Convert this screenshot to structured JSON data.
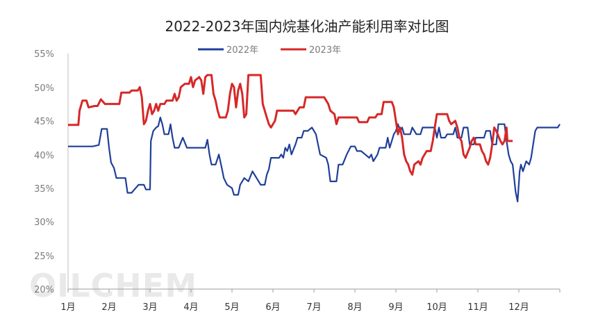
{
  "chart_data": {
    "type": "line",
    "title": "2022-2023年国内烷基化油产能利用率对比图",
    "watermark": "OILCHEM",
    "y_ticks": [
      "55%",
      "50%",
      "45%",
      "40%",
      "35%",
      "30%",
      "25%",
      "20%"
    ],
    "ylim": [
      20,
      55
    ],
    "xlim": [
      1,
      13
    ],
    "categories": [
      "1月",
      "2月",
      "3月",
      "4月",
      "5月",
      "6月",
      "7月",
      "8月",
      "9月",
      "10月",
      "11月",
      "12月"
    ],
    "grid": false,
    "legend_position": "top",
    "series": [
      {
        "name": "2022年",
        "color": "#1f3f99",
        "points": [
          [
            1.0,
            41.2
          ],
          [
            1.6,
            41.2
          ],
          [
            1.75,
            41.4
          ],
          [
            1.82,
            43.8
          ],
          [
            1.95,
            43.8
          ],
          [
            2.0,
            41.0
          ],
          [
            2.05,
            38.8
          ],
          [
            2.12,
            38.0
          ],
          [
            2.18,
            36.5
          ],
          [
            2.4,
            36.5
          ],
          [
            2.45,
            34.3
          ],
          [
            2.55,
            34.3
          ],
          [
            2.65,
            35.0
          ],
          [
            2.72,
            35.5
          ],
          [
            2.85,
            35.5
          ],
          [
            2.9,
            34.8
          ],
          [
            3.0,
            34.8
          ],
          [
            3.02,
            42.0
          ],
          [
            3.08,
            43.5
          ],
          [
            3.15,
            44.0
          ],
          [
            3.2,
            44.2
          ],
          [
            3.25,
            45.5
          ],
          [
            3.3,
            44.5
          ],
          [
            3.35,
            43.0
          ],
          [
            3.45,
            43.0
          ],
          [
            3.5,
            44.5
          ],
          [
            3.55,
            42.5
          ],
          [
            3.6,
            41.0
          ],
          [
            3.7,
            41.0
          ],
          [
            3.8,
            42.5
          ],
          [
            3.9,
            41.0
          ],
          [
            4.35,
            41.0
          ],
          [
            4.4,
            42.2
          ],
          [
            4.45,
            40.0
          ],
          [
            4.5,
            38.5
          ],
          [
            4.6,
            38.5
          ],
          [
            4.68,
            40.0
          ],
          [
            4.75,
            38.0
          ],
          [
            4.8,
            36.5
          ],
          [
            4.88,
            35.5
          ],
          [
            5.0,
            35.0
          ],
          [
            5.05,
            34.0
          ],
          [
            5.15,
            34.0
          ],
          [
            5.2,
            35.5
          ],
          [
            5.3,
            36.5
          ],
          [
            5.4,
            36.0
          ],
          [
            5.5,
            37.5
          ],
          [
            5.6,
            36.5
          ],
          [
            5.7,
            35.5
          ],
          [
            5.8,
            35.5
          ],
          [
            5.85,
            37.0
          ],
          [
            5.9,
            37.8
          ],
          [
            5.95,
            39.5
          ],
          [
            6.15,
            39.5
          ],
          [
            6.2,
            40.0
          ],
          [
            6.25,
            39.5
          ],
          [
            6.3,
            41.0
          ],
          [
            6.35,
            40.5
          ],
          [
            6.4,
            41.5
          ],
          [
            6.45,
            40.0
          ],
          [
            6.55,
            41.5
          ],
          [
            6.6,
            42.5
          ],
          [
            6.7,
            42.5
          ],
          [
            6.75,
            43.5
          ],
          [
            6.85,
            43.5
          ],
          [
            6.95,
            44.0
          ],
          [
            7.05,
            43.0
          ],
          [
            7.1,
            41.5
          ],
          [
            7.15,
            40.0
          ],
          [
            7.3,
            39.5
          ],
          [
            7.35,
            38.5
          ],
          [
            7.4,
            36.0
          ],
          [
            7.55,
            36.0
          ],
          [
            7.6,
            38.5
          ],
          [
            7.7,
            38.5
          ],
          [
            7.8,
            40.0
          ],
          [
            7.9,
            41.2
          ],
          [
            8.0,
            41.2
          ],
          [
            8.05,
            40.5
          ],
          [
            8.15,
            40.5
          ],
          [
            8.25,
            40.0
          ],
          [
            8.35,
            39.5
          ],
          [
            8.4,
            40.0
          ],
          [
            8.45,
            39.0
          ],
          [
            8.55,
            40.0
          ],
          [
            8.6,
            41.0
          ],
          [
            8.75,
            41.0
          ],
          [
            8.8,
            42.5
          ],
          [
            8.85,
            41.0
          ],
          [
            8.95,
            43.0
          ],
          [
            9.0,
            43.5
          ],
          [
            9.05,
            44.5
          ],
          [
            9.1,
            43.5
          ],
          [
            9.15,
            44.0
          ],
          [
            9.2,
            43.0
          ],
          [
            9.35,
            43.0
          ],
          [
            9.4,
            44.0
          ],
          [
            9.5,
            43.0
          ],
          [
            9.6,
            43.0
          ],
          [
            9.65,
            44.0
          ],
          [
            9.95,
            44.0
          ],
          [
            10.0,
            42.5
          ],
          [
            10.05,
            44.0
          ],
          [
            10.1,
            42.5
          ],
          [
            10.2,
            42.5
          ],
          [
            10.25,
            43.0
          ],
          [
            10.4,
            43.0
          ],
          [
            10.45,
            44.0
          ],
          [
            10.5,
            42.5
          ],
          [
            10.6,
            42.5
          ],
          [
            10.65,
            44.0
          ],
          [
            10.75,
            44.0
          ],
          [
            10.8,
            41.5
          ],
          [
            10.9,
            41.5
          ],
          [
            10.95,
            42.5
          ],
          [
            11.15,
            42.5
          ],
          [
            11.2,
            43.5
          ],
          [
            11.3,
            43.5
          ],
          [
            11.35,
            41.5
          ],
          [
            11.45,
            41.5
          ],
          [
            11.5,
            44.5
          ],
          [
            11.65,
            44.5
          ],
          [
            11.7,
            42.0
          ],
          [
            11.75,
            40.0
          ],
          [
            11.8,
            39.0
          ],
          [
            11.85,
            38.5
          ],
          [
            11.92,
            34.5
          ],
          [
            11.97,
            33.0
          ],
          [
            12.02,
            37.5
          ],
          [
            12.05,
            38.5
          ],
          [
            12.1,
            37.5
          ],
          [
            12.18,
            39.0
          ],
          [
            12.25,
            38.5
          ],
          [
            12.3,
            39.5
          ],
          [
            12.35,
            41.5
          ],
          [
            12.4,
            43.5
          ],
          [
            12.45,
            44.0
          ],
          [
            12.95,
            44.0
          ],
          [
            13.0,
            44.5
          ]
        ]
      },
      {
        "name": "2023年",
        "color": "#d62828",
        "points": [
          [
            1.0,
            44.4
          ],
          [
            1.25,
            44.4
          ],
          [
            1.28,
            46.5
          ],
          [
            1.35,
            48.0
          ],
          [
            1.45,
            48.0
          ],
          [
            1.5,
            47.0
          ],
          [
            1.65,
            47.2
          ],
          [
            1.72,
            47.2
          ],
          [
            1.8,
            48.2
          ],
          [
            1.9,
            47.5
          ],
          [
            2.05,
            47.5
          ],
          [
            2.25,
            47.5
          ],
          [
            2.3,
            49.2
          ],
          [
            2.5,
            49.2
          ],
          [
            2.55,
            49.5
          ],
          [
            2.7,
            49.5
          ],
          [
            2.75,
            50.0
          ],
          [
            2.8,
            48.5
          ],
          [
            2.85,
            44.5
          ],
          [
            2.9,
            45.0
          ],
          [
            2.95,
            46.5
          ],
          [
            3.0,
            47.5
          ],
          [
            3.05,
            46.0
          ],
          [
            3.1,
            46.5
          ],
          [
            3.15,
            47.5
          ],
          [
            3.2,
            46.5
          ],
          [
            3.25,
            47.5
          ],
          [
            3.35,
            47.5
          ],
          [
            3.4,
            48.0
          ],
          [
            3.55,
            48.0
          ],
          [
            3.6,
            49.0
          ],
          [
            3.65,
            48.0
          ],
          [
            3.7,
            48.5
          ],
          [
            3.75,
            50.0
          ],
          [
            3.85,
            50.5
          ],
          [
            3.95,
            50.5
          ],
          [
            4.0,
            51.5
          ],
          [
            4.05,
            50.0
          ],
          [
            4.1,
            51.0
          ],
          [
            4.2,
            51.5
          ],
          [
            4.25,
            51.0
          ],
          [
            4.3,
            49.0
          ],
          [
            4.35,
            51.5
          ],
          [
            4.4,
            51.8
          ],
          [
            4.5,
            51.8
          ],
          [
            4.55,
            49.0
          ],
          [
            4.6,
            48.0
          ],
          [
            4.65,
            46.5
          ],
          [
            4.7,
            45.5
          ],
          [
            4.85,
            45.5
          ],
          [
            4.9,
            46.5
          ],
          [
            4.95,
            49.0
          ],
          [
            5.0,
            50.5
          ],
          [
            5.05,
            50.0
          ],
          [
            5.1,
            47.0
          ],
          [
            5.15,
            49.5
          ],
          [
            5.2,
            50.5
          ],
          [
            5.25,
            49.0
          ],
          [
            5.3,
            45.5
          ],
          [
            5.35,
            46.0
          ],
          [
            5.4,
            51.8
          ],
          [
            5.7,
            51.8
          ],
          [
            5.75,
            47.5
          ],
          [
            5.8,
            46.5
          ],
          [
            5.85,
            45.5
          ],
          [
            5.9,
            44.5
          ],
          [
            5.95,
            44.0
          ],
          [
            6.05,
            45.0
          ],
          [
            6.1,
            46.5
          ],
          [
            6.5,
            46.5
          ],
          [
            6.55,
            46.0
          ],
          [
            6.6,
            46.5
          ],
          [
            6.65,
            47.0
          ],
          [
            6.75,
            47.0
          ],
          [
            6.8,
            48.5
          ],
          [
            7.25,
            48.5
          ],
          [
            7.3,
            48.0
          ],
          [
            7.35,
            47.5
          ],
          [
            7.4,
            46.5
          ],
          [
            7.5,
            46.0
          ],
          [
            7.55,
            44.5
          ],
          [
            7.6,
            45.5
          ],
          [
            8.05,
            45.5
          ],
          [
            8.1,
            44.8
          ],
          [
            8.3,
            44.8
          ],
          [
            8.35,
            45.5
          ],
          [
            8.5,
            45.5
          ],
          [
            8.55,
            46.0
          ],
          [
            8.65,
            46.0
          ],
          [
            8.7,
            47.8
          ],
          [
            8.9,
            47.8
          ],
          [
            8.95,
            47.0
          ],
          [
            9.0,
            45.0
          ],
          [
            9.05,
            43.0
          ],
          [
            9.1,
            44.0
          ],
          [
            9.15,
            42.5
          ],
          [
            9.2,
            40.0
          ],
          [
            9.25,
            39.0
          ],
          [
            9.3,
            38.5
          ],
          [
            9.35,
            37.5
          ],
          [
            9.4,
            37.0
          ],
          [
            9.45,
            38.5
          ],
          [
            9.55,
            39.0
          ],
          [
            9.6,
            38.5
          ],
          [
            9.65,
            39.5
          ],
          [
            9.75,
            40.5
          ],
          [
            9.85,
            40.5
          ],
          [
            9.9,
            42.0
          ],
          [
            9.95,
            44.0
          ],
          [
            10.0,
            46.0
          ],
          [
            10.25,
            46.0
          ],
          [
            10.3,
            45.0
          ],
          [
            10.35,
            44.5
          ],
          [
            10.45,
            45.0
          ],
          [
            10.5,
            44.0
          ],
          [
            10.55,
            42.5
          ],
          [
            10.6,
            42.0
          ],
          [
            10.65,
            40.0
          ],
          [
            10.7,
            39.5
          ],
          [
            10.8,
            41.0
          ],
          [
            10.85,
            42.0
          ],
          [
            10.9,
            42.5
          ],
          [
            10.95,
            41.5
          ],
          [
            11.05,
            41.5
          ],
          [
            11.1,
            40.5
          ],
          [
            11.15,
            40.0
          ],
          [
            11.2,
            39.0
          ],
          [
            11.25,
            38.5
          ],
          [
            11.3,
            39.5
          ],
          [
            11.35,
            41.5
          ],
          [
            11.4,
            44.0
          ],
          [
            11.45,
            43.5
          ],
          [
            11.55,
            42.0
          ],
          [
            11.6,
            41.5
          ],
          [
            11.65,
            42.0
          ],
          [
            11.7,
            44.0
          ],
          [
            11.72,
            42.0
          ],
          [
            11.78,
            42.0
          ],
          [
            11.85,
            42.0
          ]
        ]
      }
    ]
  }
}
